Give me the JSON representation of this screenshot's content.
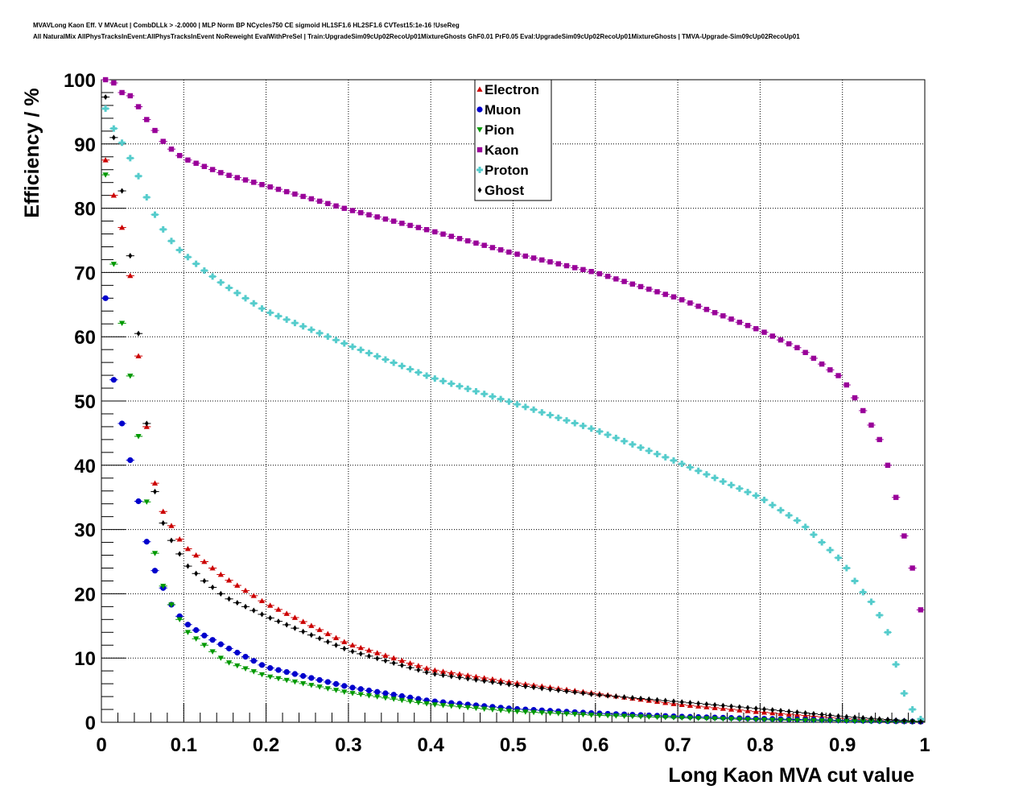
{
  "chart_data": {
    "type": "scatter",
    "title_lines": [
      "MVAVLong Kaon Eff. V MVAcut | CombDLLk > -2.0000 | MLP Norm BP NCycles750 CE sigmoid HL1SF1.6 HL2SF1.6 CVTest15:1e-16 !UseReg",
      "All NaturalMix AllPhysTracksInEvent:AllPhysTracksInEvent NoReweight EvalWithPreSel | Train:UpgradeSim09cUp02RecoUp01MixtureGhosts GhF0.01 PrF0.05 Eval:UpgradeSim09cUp02RecoUp01MixtureGhosts | TMVA-Upgrade-Sim09cUp02RecoUp01"
    ],
    "xlabel": "Long Kaon MVA cut value",
    "ylabel": "Efficiency / %",
    "xlim": [
      0,
      1
    ],
    "ylim": [
      0,
      100
    ],
    "xticks": [
      "0",
      "0.1",
      "0.2",
      "0.3",
      "0.4",
      "0.5",
      "0.6",
      "0.7",
      "0.8",
      "0.9",
      "1"
    ],
    "yticks": [
      "0",
      "10",
      "20",
      "30",
      "40",
      "50",
      "60",
      "70",
      "80",
      "90",
      "100"
    ],
    "grid": true,
    "legend_position": "top-center",
    "series": [
      {
        "name": "Electron",
        "marker": "triangle-up",
        "color": "#cc0000",
        "knots_x": [
          0.005,
          0.015,
          0.025,
          0.035,
          0.045,
          0.055,
          0.065,
          0.075,
          0.085,
          0.095,
          0.105,
          0.125,
          0.15,
          0.2,
          0.3,
          0.4,
          0.5,
          0.6,
          0.7,
          0.8,
          0.9,
          0.95,
          0.995
        ],
        "knots_y": [
          87.5,
          82,
          77,
          69.5,
          57,
          46,
          37.2,
          32.8,
          30.6,
          28.5,
          27,
          25,
          22.5,
          18.5,
          12.2,
          8.2,
          6.2,
          4.5,
          2.8,
          1.6,
          0.6,
          0.25,
          0.1
        ]
      },
      {
        "name": "Muon",
        "marker": "circle",
        "color": "#0000cc",
        "knots_x": [
          0.005,
          0.015,
          0.025,
          0.035,
          0.045,
          0.055,
          0.065,
          0.075,
          0.085,
          0.095,
          0.105,
          0.125,
          0.15,
          0.2,
          0.3,
          0.4,
          0.5,
          0.6,
          0.7,
          0.8,
          0.9,
          0.995
        ],
        "knots_y": [
          66,
          53.3,
          46.5,
          40.8,
          34.4,
          28.1,
          23.6,
          20.9,
          18.3,
          16.5,
          15.2,
          13.5,
          11.8,
          8.6,
          5.5,
          3.3,
          2.1,
          1.4,
          0.9,
          0.55,
          0.3,
          0.1
        ]
      },
      {
        "name": "Pion",
        "marker": "triangle-down",
        "color": "#009900",
        "knots_x": [
          0.005,
          0.015,
          0.025,
          0.035,
          0.045,
          0.055,
          0.065,
          0.075,
          0.085,
          0.095,
          0.105,
          0.125,
          0.15,
          0.2,
          0.3,
          0.4,
          0.5,
          0.6,
          0.7,
          0.8,
          0.9,
          0.995
        ],
        "knots_y": [
          85.2,
          71.3,
          62.1,
          53.9,
          44.5,
          34.3,
          26.3,
          21.2,
          18.3,
          16,
          14,
          12,
          9.5,
          7.2,
          4.6,
          2.8,
          1.7,
          1.1,
          0.7,
          0.4,
          0.2,
          0.05
        ]
      },
      {
        "name": "Kaon",
        "marker": "square",
        "color": "#990099",
        "knots_x": [
          0.005,
          0.015,
          0.025,
          0.035,
          0.045,
          0.055,
          0.065,
          0.075,
          0.085,
          0.095,
          0.105,
          0.125,
          0.15,
          0.2,
          0.3,
          0.4,
          0.5,
          0.6,
          0.7,
          0.8,
          0.85,
          0.9,
          0.925,
          0.945,
          0.955,
          0.965,
          0.975,
          0.985,
          0.995
        ],
        "knots_y": [
          100,
          99.5,
          98,
          97.5,
          95.8,
          93.8,
          92.1,
          90.4,
          89.2,
          88.2,
          87.5,
          86.5,
          85.3,
          83.5,
          79.8,
          76.5,
          73,
          70,
          66,
          61,
          58,
          53.5,
          48.5,
          44,
          40,
          35,
          29,
          24,
          17.5
        ]
      },
      {
        "name": "Proton",
        "marker": "cross",
        "color": "#55cccc",
        "knots_x": [
          0.005,
          0.015,
          0.025,
          0.035,
          0.045,
          0.055,
          0.065,
          0.075,
          0.085,
          0.095,
          0.105,
          0.125,
          0.15,
          0.2,
          0.3,
          0.4,
          0.5,
          0.6,
          0.7,
          0.8,
          0.85,
          0.9,
          0.92,
          0.94,
          0.955,
          0.965,
          0.975,
          0.985,
          0.995
        ],
        "knots_y": [
          95.5,
          92.4,
          90.2,
          87.8,
          85,
          81.7,
          79,
          76.7,
          74.9,
          73.5,
          72.4,
          70.3,
          68,
          64,
          58.7,
          53.7,
          49.7,
          45.5,
          40.5,
          35,
          31,
          25,
          21,
          18,
          14,
          9,
          4.5,
          2,
          0.5
        ]
      },
      {
        "name": "Ghost",
        "marker": "diamond",
        "color": "#000000",
        "knots_x": [
          0.005,
          0.015,
          0.025,
          0.035,
          0.045,
          0.055,
          0.065,
          0.075,
          0.085,
          0.095,
          0.105,
          0.125,
          0.15,
          0.2,
          0.3,
          0.4,
          0.5,
          0.6,
          0.7,
          0.8,
          0.9,
          0.995
        ],
        "knots_y": [
          97.3,
          91,
          82.7,
          72.6,
          60.5,
          46.5,
          35.9,
          31,
          28.3,
          26.2,
          24.3,
          22,
          19.5,
          16.5,
          11.2,
          7.6,
          5.8,
          4.3,
          3.2,
          2.1,
          0.9,
          0.1
        ]
      }
    ]
  }
}
